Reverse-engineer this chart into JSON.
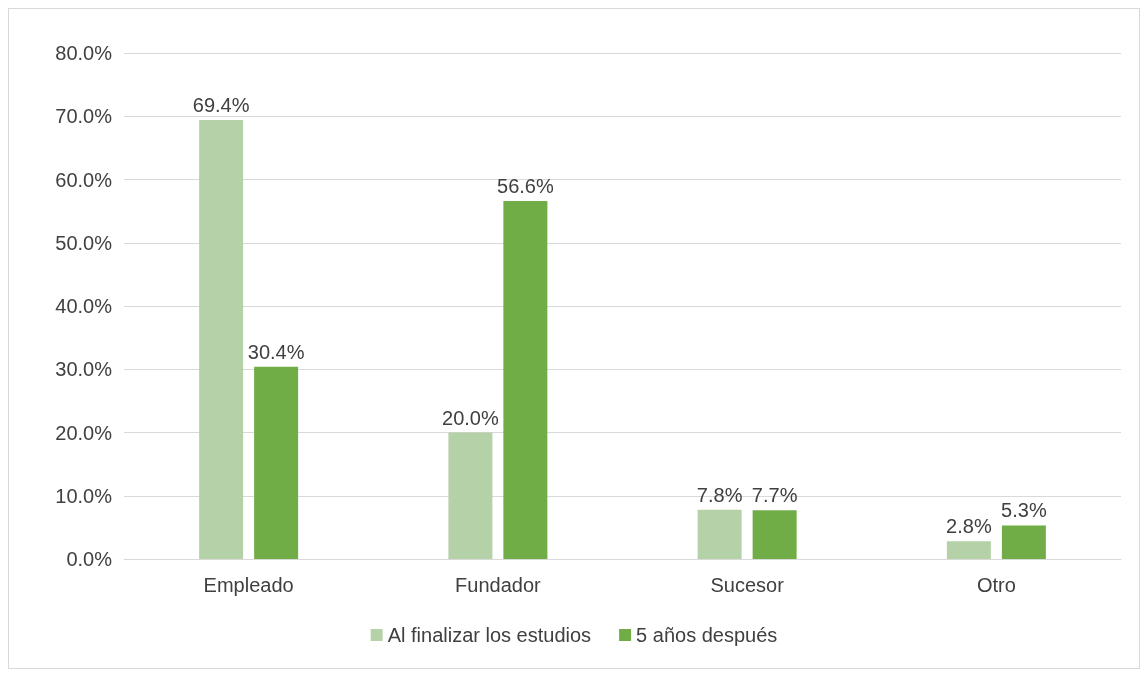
{
  "chart_data": {
    "type": "bar",
    "categories": [
      "Empleado",
      "Fundador",
      "Sucesor",
      "Otro"
    ],
    "series": [
      {
        "name": "Al finalizar los estudios",
        "color": "#b5d1a7",
        "values": [
          69.4,
          20.0,
          7.8,
          2.8
        ],
        "value_labels": [
          "69.4%",
          "20.0%",
          "7.8%",
          "2.8%"
        ]
      },
      {
        "name": "5 años después",
        "color": "#70ad47",
        "values": [
          30.4,
          56.6,
          7.7,
          5.3
        ],
        "value_labels": [
          "30.4%",
          "56.6%",
          "7.7%",
          "5.3%"
        ]
      }
    ],
    "ylim": [
      0,
      80
    ],
    "yticks": [
      {
        "value": 0,
        "label": "0.0%"
      },
      {
        "value": 10,
        "label": "10.0%"
      },
      {
        "value": 20,
        "label": "20.0%"
      },
      {
        "value": 30,
        "label": "30.0%"
      },
      {
        "value": 40,
        "label": "40.0%"
      },
      {
        "value": 50,
        "label": "50.0%"
      },
      {
        "value": 60,
        "label": "60.0%"
      },
      {
        "value": 70,
        "label": "70.0%"
      },
      {
        "value": 80,
        "label": "80.0%"
      }
    ],
    "grid": "y",
    "legend": "bottom"
  }
}
